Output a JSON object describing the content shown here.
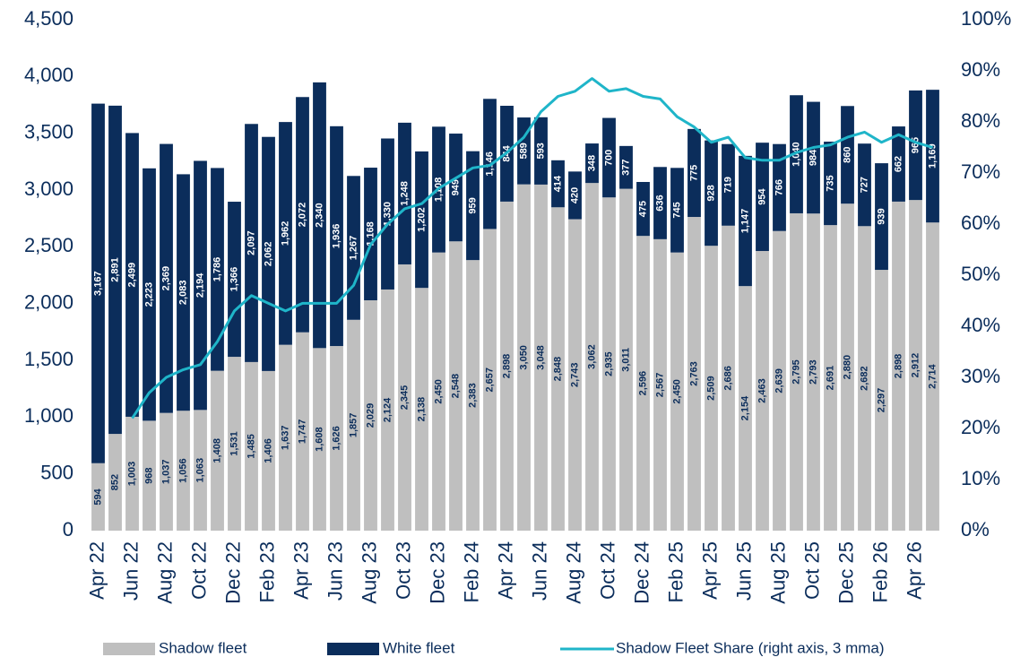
{
  "chart_data": {
    "type": "bar",
    "categories": [
      "Apr 22",
      null,
      "Jun 22",
      null,
      "Aug 22",
      null,
      "Oct 22",
      null,
      "Dec 22",
      null,
      "Feb 23",
      null,
      "Apr 23",
      null,
      "Jun 23",
      null,
      "Aug 23",
      null,
      "Oct 23",
      null,
      "Dec 23",
      null,
      "Feb 24",
      null,
      "Apr 24",
      null,
      "Jun 24",
      null,
      "Aug 24",
      null,
      "Oct 24",
      null,
      "Dec 24",
      null,
      "Feb 25",
      null,
      "Apr 25",
      null,
      "Jun 25",
      null,
      "Aug 25",
      null,
      "Oct 25",
      null,
      "Dec 25",
      null,
      "Feb 26",
      null,
      "Apr 26",
      null
    ],
    "series": [
      {
        "name": "Shadow fleet",
        "color": "#bfbfbf",
        "label_color": "#0b2d5b",
        "values": [
          594,
          852,
          1003,
          968,
          1037,
          1056,
          1063,
          1408,
          1531,
          1485,
          1406,
          1637,
          1747,
          1608,
          1626,
          1857,
          2029,
          2124,
          2345,
          2138,
          2450,
          2548,
          2383,
          2657,
          2898,
          3050,
          3048,
          2848,
          2743,
          3062,
          2935,
          3011,
          2596,
          2567,
          2450,
          2763,
          2509,
          2686,
          2154,
          2463,
          2639,
          2795,
          2793,
          2691,
          2880,
          2682,
          2297,
          2898,
          2912,
          2714
        ],
        "value_labels": [
          "594",
          "852",
          "1,003",
          "968",
          "1,037",
          "1,056",
          "1,063",
          "1,408",
          "1,531",
          "1,485",
          "1,406",
          "1,637",
          "1,747",
          "1,608",
          "1,626",
          "1,857",
          "2,029",
          "2,124",
          "2,345",
          "2,138",
          "2,450",
          "2,548",
          "2,383",
          "2,657",
          "2,898",
          "3,050",
          "3,048",
          "2,848",
          "2,743",
          "3,062",
          "2,935",
          "3,011",
          "2,596",
          "2,567",
          "2,450",
          "2,763",
          "2,509",
          "2,686",
          "2,154",
          "2,463",
          "2,639",
          "2,795",
          "2,793",
          "2,691",
          "2,880",
          "2,682",
          "2,297",
          "2,898",
          "2,912",
          "2,714"
        ]
      },
      {
        "name": "White fleet",
        "color": "#0b2d5b",
        "label_color": "#ffffff",
        "values": [
          3167,
          2891,
          2499,
          2223,
          2369,
          2083,
          2194,
          1786,
          1366,
          2097,
          2062,
          1962,
          2072,
          2340,
          1936,
          1267,
          1168,
          1330,
          1248,
          1202,
          1108,
          949,
          959,
          1146,
          844,
          589,
          593,
          414,
          420,
          348,
          700,
          377,
          475,
          636,
          745,
          775,
          928,
          719,
          1147,
          954,
          766,
          1040,
          984,
          735,
          860,
          727,
          939,
          662,
          965,
          1169
        ],
        "value_labels": [
          "3,167",
          "2,891",
          "2,499",
          "2,223",
          "2,369",
          "2,083",
          "2,194",
          "1,786",
          "1,366",
          "2,097",
          "2,062",
          "1,962",
          "2,072",
          "2,340",
          "1,936",
          "1,267",
          "1,168",
          "1,330",
          "1,248",
          "1,202",
          "1,108",
          "949",
          "959",
          "1,146",
          "844",
          "589",
          "593",
          "414",
          "420",
          "348",
          "700",
          "377",
          "475",
          "636",
          "745",
          "775",
          "928",
          "719",
          "1,147",
          "954",
          "766",
          "1,040",
          "984",
          "735",
          "860",
          "727",
          "939",
          "662",
          "965",
          "1,169"
        ]
      },
      {
        "name": "Shadow Fleet Share (right axis, 3 mma)",
        "color": "#1fb5c9",
        "type": "line",
        "axis": "y2",
        "values": [
          null,
          null,
          22,
          27,
          30,
          31.5,
          32.5,
          37,
          43,
          46,
          44.5,
          43,
          44.5,
          44.5,
          44.5,
          48,
          56,
          60,
          63,
          64,
          67,
          69,
          71,
          71.5,
          74,
          77,
          82,
          85,
          86,
          88.5,
          86,
          86.5,
          85,
          84.5,
          81,
          79,
          76,
          77,
          73,
          72.5,
          72.5,
          74,
          75,
          75.5,
          77,
          78,
          76,
          77.5,
          76,
          75
        ]
      }
    ],
    "stacked": true,
    "ylim": [
      0,
      4500
    ],
    "yticks": [
      0,
      500,
      {
        "value": 1000,
        "label": "1,000"
      },
      {
        "value": 1500,
        "label": "1,500"
      },
      {
        "value": 2000,
        "label": "2,000"
      },
      {
        "value": 2500,
        "label": "2,500"
      },
      {
        "value": 3000,
        "label": "3,000"
      },
      {
        "value": 3500,
        "label": "3,500"
      },
      {
        "value": 4000,
        "label": "4,000"
      },
      {
        "value": 4500,
        "label": "4,500"
      }
    ],
    "y2lim": [
      0,
      100
    ],
    "y2ticks": [
      {
        "value": 0,
        "label": "0%"
      },
      {
        "value": 10,
        "label": "10%"
      },
      {
        "value": 20,
        "label": "20%"
      },
      {
        "value": 30,
        "label": "30%"
      },
      {
        "value": 40,
        "label": "40%"
      },
      {
        "value": 50,
        "label": "50%"
      },
      {
        "value": 60,
        "label": "60%"
      },
      {
        "value": 70,
        "label": "70%"
      },
      {
        "value": 80,
        "label": "80%"
      },
      {
        "value": 90,
        "label": "90%"
      },
      {
        "value": 100,
        "label": "100%"
      }
    ],
    "grid": false,
    "legend": "bottom"
  }
}
